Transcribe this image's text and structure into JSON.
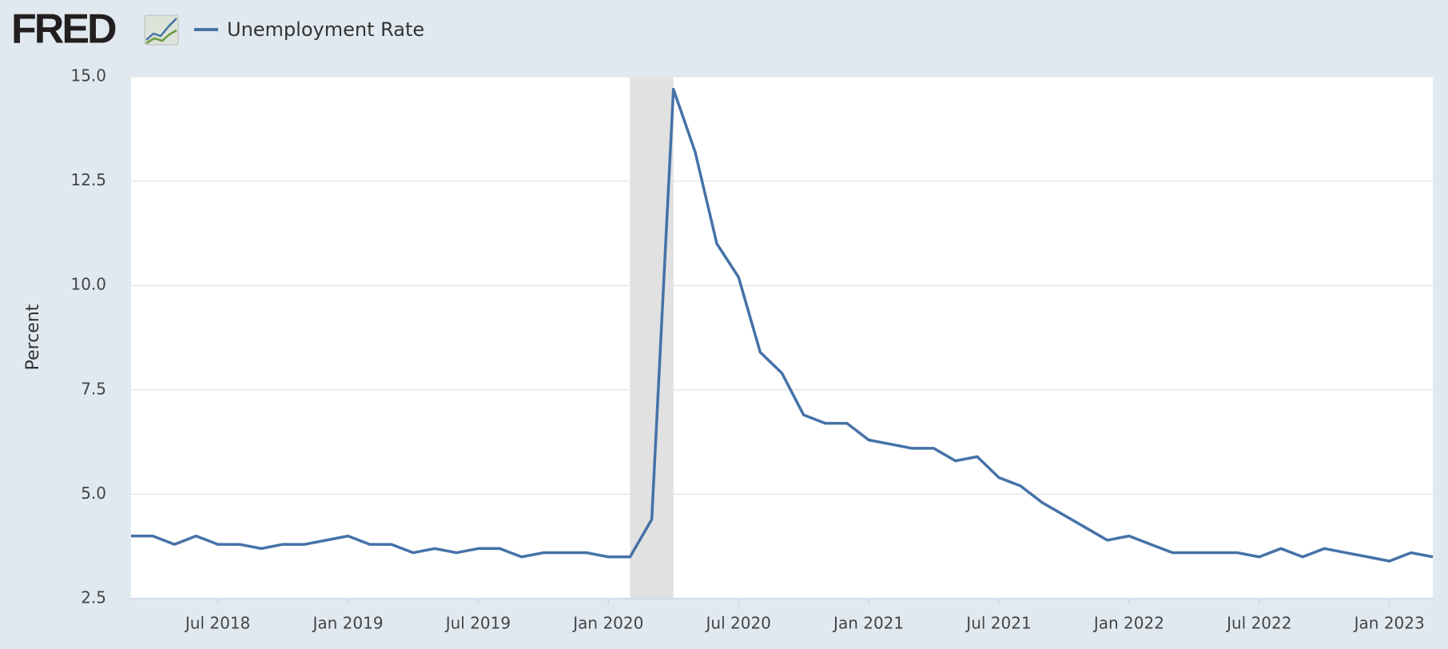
{
  "logo": "FRED",
  "chart_data": {
    "type": "line",
    "y_axis_label": "Percent",
    "x": [
      "2018-03",
      "2018-04",
      "2018-05",
      "2018-06",
      "2018-07",
      "2018-08",
      "2018-09",
      "2018-10",
      "2018-11",
      "2018-12",
      "2019-01",
      "2019-02",
      "2019-03",
      "2019-04",
      "2019-05",
      "2019-06",
      "2019-07",
      "2019-08",
      "2019-09",
      "2019-10",
      "2019-11",
      "2019-12",
      "2020-01",
      "2020-02",
      "2020-03",
      "2020-04",
      "2020-05",
      "2020-06",
      "2020-07",
      "2020-08",
      "2020-09",
      "2020-10",
      "2020-11",
      "2020-12",
      "2021-01",
      "2021-02",
      "2021-03",
      "2021-04",
      "2021-05",
      "2021-06",
      "2021-07",
      "2021-08",
      "2021-09",
      "2021-10",
      "2021-11",
      "2021-12",
      "2022-01",
      "2022-02",
      "2022-03",
      "2022-04",
      "2022-05",
      "2022-06",
      "2022-07",
      "2022-08",
      "2022-09",
      "2022-10",
      "2022-11",
      "2022-12",
      "2023-01",
      "2023-02",
      "2023-03"
    ],
    "series": [
      {
        "name": "Unemployment Rate",
        "color": "#4572a7",
        "values": [
          4.0,
          4.0,
          3.8,
          4.0,
          3.8,
          3.8,
          3.7,
          3.8,
          3.8,
          3.9,
          4.0,
          3.8,
          3.8,
          3.6,
          3.7,
          3.6,
          3.7,
          3.7,
          3.5,
          3.6,
          3.6,
          3.6,
          3.5,
          3.5,
          4.4,
          14.7,
          13.2,
          11.0,
          10.2,
          8.4,
          7.9,
          6.9,
          6.7,
          6.7,
          6.3,
          6.2,
          6.1,
          6.1,
          5.8,
          5.9,
          5.4,
          5.2,
          4.8,
          4.5,
          4.2,
          3.9,
          4.0,
          3.8,
          3.6,
          3.6,
          3.6,
          3.6,
          3.5,
          3.7,
          3.5,
          3.7,
          3.6,
          3.5,
          3.4,
          3.6,
          3.5
        ]
      }
    ],
    "xlim": [
      "2018-03",
      "2023-03"
    ],
    "xticks": [
      {
        "value": "2018-07",
        "label": "Jul 2018"
      },
      {
        "value": "2019-01",
        "label": "Jan 2019"
      },
      {
        "value": "2019-07",
        "label": "Jul 2019"
      },
      {
        "value": "2020-01",
        "label": "Jan 2020"
      },
      {
        "value": "2020-07",
        "label": "Jul 2020"
      },
      {
        "value": "2021-01",
        "label": "Jan 2021"
      },
      {
        "value": "2021-07",
        "label": "Jul 2021"
      },
      {
        "value": "2022-01",
        "label": "Jan 2022"
      },
      {
        "value": "2022-07",
        "label": "Jul 2022"
      },
      {
        "value": "2023-01",
        "label": "Jan 2023"
      }
    ],
    "ylim": [
      2.5,
      15.0
    ],
    "yticks": [
      {
        "value": 2.5,
        "label": "2.5"
      },
      {
        "value": 5.0,
        "label": "5.0"
      },
      {
        "value": 7.5,
        "label": "7.5"
      },
      {
        "value": 10.0,
        "label": "10.0"
      },
      {
        "value": 12.5,
        "label": "12.5"
      },
      {
        "value": 15.0,
        "label": "15.0"
      }
    ],
    "grid": true,
    "shading": [
      [
        "2020-02",
        "2020-04"
      ]
    ],
    "shading_color": "#e1e1e1"
  }
}
